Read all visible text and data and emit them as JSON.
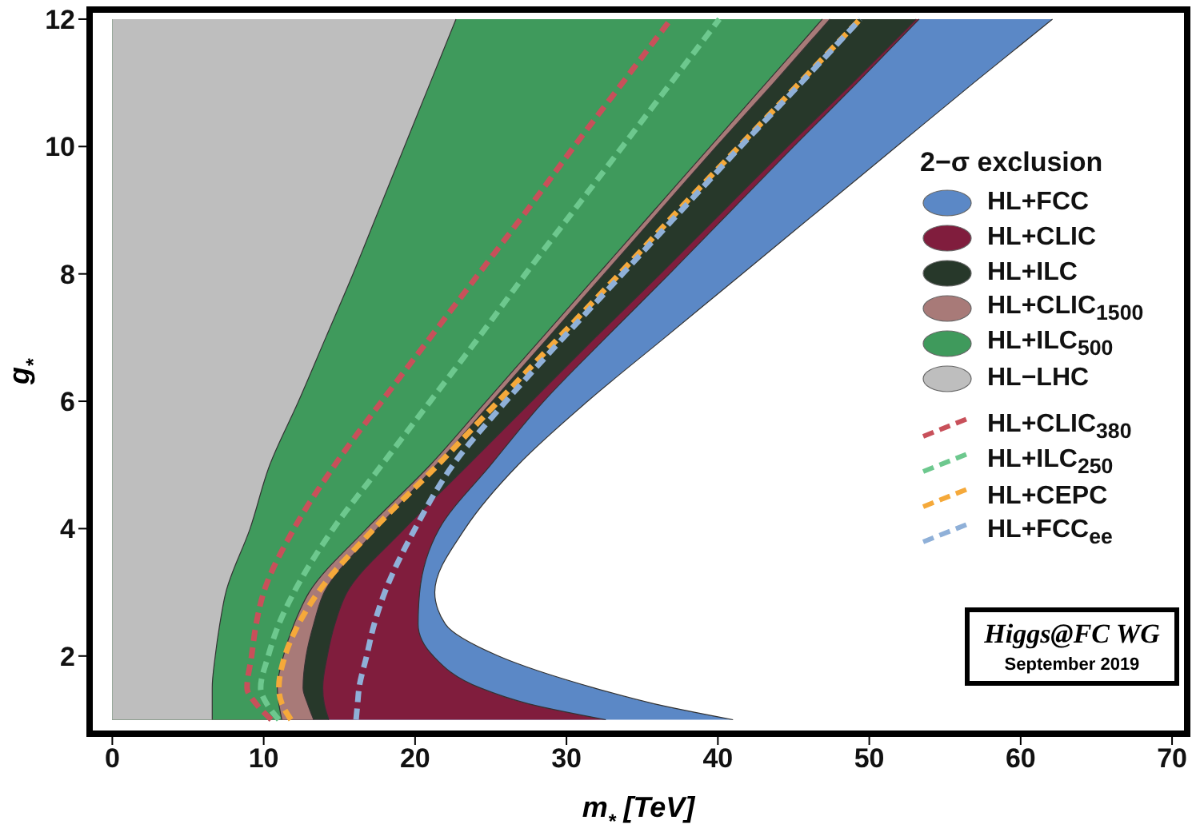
{
  "chart_data": {
    "type": "area",
    "orientation": "horizontal",
    "xlabel": "m$_{*}$ [TeV]",
    "ylabel": "g$_{*}$",
    "legend_title": "2−σ exclusion",
    "legend": "right",
    "marker": "none",
    "x": [
      1,
      1.25,
      1.5,
      2,
      2.5,
      3,
      4,
      5,
      6,
      7,
      8,
      9,
      10,
      11,
      12
    ],
    "xlim": [
      -1.5,
      71
    ],
    "xticks": [
      0,
      10,
      20,
      30,
      40,
      50,
      60,
      70
    ],
    "ylim": [
      0.78,
      12.15
    ],
    "yticks": [
      2,
      4,
      6,
      8,
      10,
      12
    ],
    "series": [
      {
        "name": "HL+FCC",
        "color": "#5b88c6",
        "values": [
          41.0,
          35.8,
          31.8,
          25.5,
          22.0,
          21.3,
          23.3,
          26.8,
          31.4,
          36.5,
          41.6,
          46.7,
          51.8,
          56.9,
          62.1
        ]
      },
      {
        "name": "HL+CLIC",
        "color": "#801d3d",
        "values": [
          32.6,
          27.5,
          24.3,
          21.2,
          20.2,
          20.3,
          21.6,
          25.0,
          28.5,
          32.6,
          36.8,
          40.9,
          45.0,
          49.2,
          53.3
        ]
      },
      {
        "name": "HL+ILC",
        "color": "#27382a",
        "values": [
          14.3,
          14.0,
          13.9,
          14.2,
          14.7,
          15.5,
          19.3,
          23.5,
          27.7,
          31.9,
          36.2,
          40.4,
          44.6,
          48.9,
          53.1
        ]
      },
      {
        "name": "HL+CLIC$_{1500}$",
        "color": "#a87a78",
        "values": [
          13.3,
          12.9,
          12.6,
          12.8,
          13.3,
          14.0,
          17.5,
          21.4,
          25.1,
          28.8,
          32.5,
          36.2,
          39.9,
          43.7,
          47.4
        ]
      },
      {
        "name": "HL+ILC$_{500}$",
        "color": "#3f9a5c",
        "values": [
          11.2,
          11.0,
          10.9,
          11.3,
          12.0,
          13.0,
          16.8,
          21.0,
          24.7,
          28.4,
          32.1,
          35.8,
          39.5,
          43.2,
          46.9
        ]
      },
      {
        "name": "HL−LHC",
        "color": "#bebebe",
        "values": [
          6.6,
          6.6,
          6.6,
          6.8,
          7.1,
          7.5,
          9.1,
          10.4,
          12.3,
          14.1,
          15.9,
          17.6,
          19.3,
          21.0,
          22.7
        ]
      },
      {
        "name": "HL+CLIC$_{380}$",
        "type": "line",
        "line_style": "dashed",
        "color": "#c8505a",
        "values": [
          10.5,
          9.5,
          8.9,
          9.2,
          9.5,
          10.0,
          12.0,
          14.7,
          17.8,
          21.0,
          24.2,
          27.4,
          30.5,
          33.7,
          36.9
        ]
      },
      {
        "name": "HL+ILC$_{250}$",
        "type": "line",
        "line_style": "dashed",
        "color": "#6dc88e",
        "values": [
          11.0,
          10.2,
          9.8,
          10.3,
          11.0,
          12.0,
          14.6,
          17.8,
          21.0,
          24.2,
          27.3,
          30.5,
          33.7,
          36.9,
          40.1
        ]
      },
      {
        "name": "HL+CEPC",
        "type": "line",
        "line_style": "dashed",
        "color": "#f5a93a",
        "values": [
          11.8,
          11.2,
          11.0,
          11.4,
          12.3,
          13.6,
          17.3,
          21.5,
          25.5,
          29.5,
          33.5,
          37.4,
          41.4,
          45.4,
          49.4
        ]
      },
      {
        "name": "HL+FCC$_{ee}$",
        "type": "line",
        "line_style": "dashed",
        "color": "#8fb0d8",
        "values": [
          16.1,
          16.2,
          16.3,
          16.8,
          17.3,
          18.0,
          20.0,
          22.5,
          26.0,
          29.8,
          33.7,
          37.6,
          41.5,
          45.5,
          49.4
        ]
      }
    ],
    "annotations": [
      "Higgs@FC WG",
      "September 2019"
    ]
  }
}
